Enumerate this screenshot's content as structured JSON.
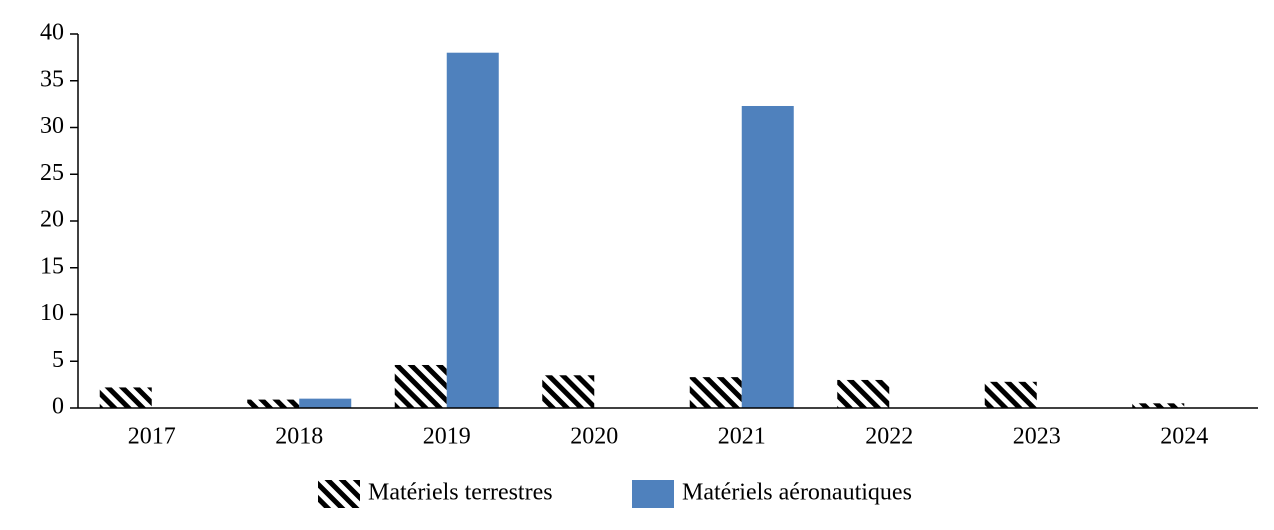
{
  "chart_data": {
    "type": "bar",
    "categories": [
      "2017",
      "2018",
      "2019",
      "2020",
      "2021",
      "2022",
      "2023",
      "2024"
    ],
    "series": [
      {
        "name": "Matériels terrestres",
        "color": "#000000",
        "pattern": "hatch",
        "values": [
          2.2,
          0.9,
          4.6,
          3.5,
          3.3,
          3.0,
          2.8,
          0.5
        ]
      },
      {
        "name": "Matériels aéronautiques",
        "color": "#4f81bd",
        "values": [
          0,
          1.0,
          38,
          0,
          32.3,
          0,
          0,
          0
        ]
      }
    ],
    "ylim": [
      0,
      40
    ],
    "yticks": [
      0,
      5,
      10,
      15,
      20,
      25,
      30,
      35,
      40
    ],
    "grid": false,
    "legend": "bottom"
  }
}
